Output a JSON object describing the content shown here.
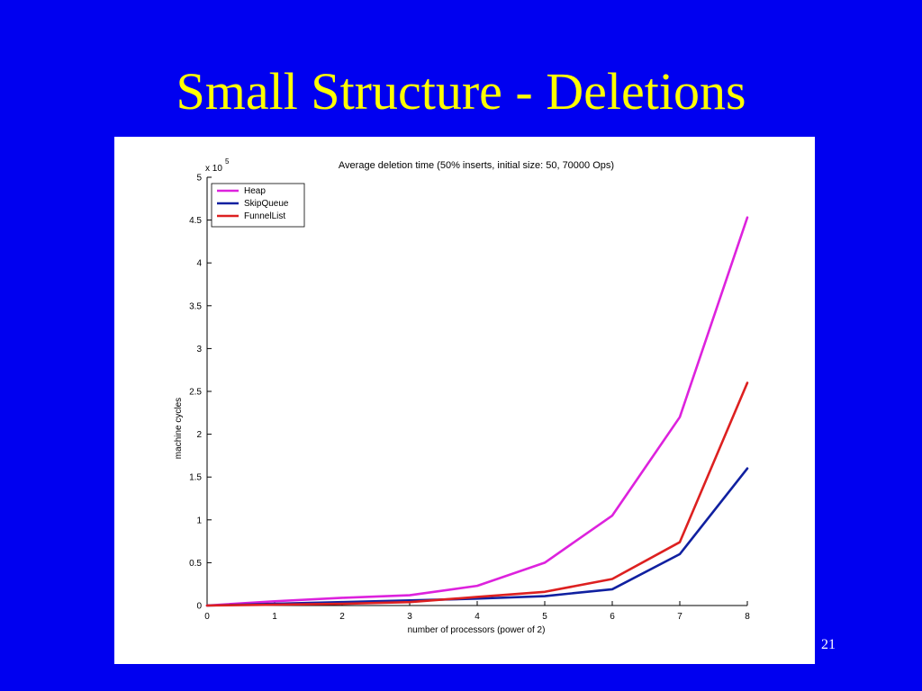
{
  "slide": {
    "title": "Small Structure - Deletions",
    "number": "21",
    "background": "#0000f0",
    "title_color": "#ffff00"
  },
  "chart_data": {
    "type": "line",
    "title": "Average deletion time (50% inserts, initial size: 50, 70000 Ops)",
    "xlabel": "number of processors (power of 2)",
    "ylabel": "machine cycles",
    "y_multiplier": "x 10",
    "y_multiplier_exp": "5",
    "xlim": [
      0,
      8
    ],
    "ylim": [
      0,
      5
    ],
    "x": [
      0,
      1,
      2,
      3,
      4,
      5,
      6,
      7,
      8
    ],
    "xticks": [
      "0",
      "1",
      "2",
      "3",
      "4",
      "5",
      "6",
      "7",
      "8"
    ],
    "yticks": [
      "0",
      "0.5",
      "1",
      "1.5",
      "2",
      "2.5",
      "3",
      "3.5",
      "4",
      "4.5",
      "5"
    ],
    "grid": false,
    "legend_position": "top-left",
    "series": [
      {
        "name": "Heap",
        "color": "#dd22dd",
        "values": [
          0,
          0.05,
          0.09,
          0.12,
          0.23,
          0.5,
          1.05,
          2.2,
          4.53
        ]
      },
      {
        "name": "SkipQueue",
        "color": "#1020a0",
        "values": [
          0,
          0.02,
          0.04,
          0.06,
          0.08,
          0.11,
          0.19,
          0.6,
          1.6
        ]
      },
      {
        "name": "FunnelList",
        "color": "#dd2020",
        "values": [
          0,
          0.01,
          0.02,
          0.04,
          0.1,
          0.16,
          0.31,
          0.74,
          2.6
        ]
      }
    ]
  }
}
